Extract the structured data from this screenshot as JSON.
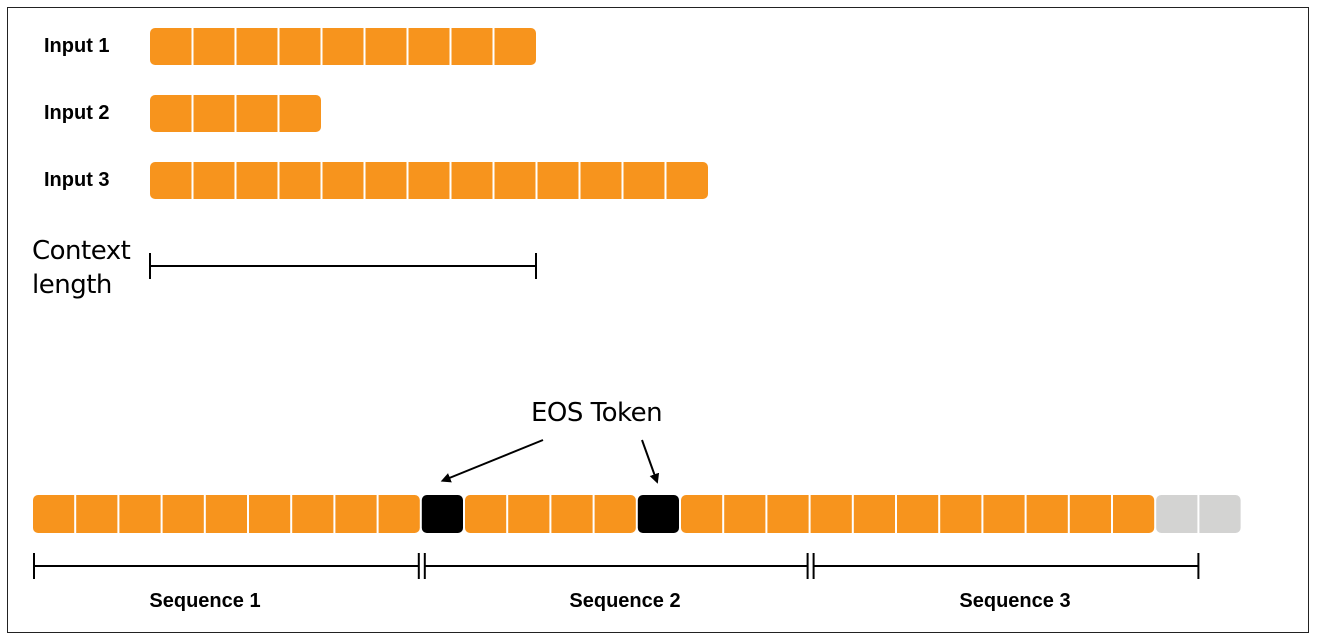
{
  "colors": {
    "token": "#f7941d",
    "eos": "#000000",
    "padding": "#d3d3d2",
    "line": "#000000"
  },
  "inputs": [
    {
      "label": "Input 1",
      "tokens": 9
    },
    {
      "label": "Input 2",
      "tokens": 4
    },
    {
      "label": "Input 3",
      "tokens": 13
    }
  ],
  "context": {
    "label_line1": "Context",
    "label_line2": "length",
    "tokens": 9
  },
  "eos_label": "EOS Token",
  "packed": {
    "tokens": [
      "t",
      "t",
      "t",
      "t",
      "t",
      "t",
      "t",
      "t",
      "t",
      "eos",
      "t",
      "t",
      "t",
      "t",
      "eos",
      "t",
      "t",
      "t",
      "t",
      "t",
      "t",
      "t",
      "t",
      "t",
      "t",
      "t",
      "pad",
      "pad"
    ]
  },
  "sequences": [
    {
      "label": "Sequence 1",
      "tokens": 9
    },
    {
      "label": "Sequence 2",
      "tokens": 9
    },
    {
      "label": "Sequence 3",
      "tokens": 9
    }
  ]
}
